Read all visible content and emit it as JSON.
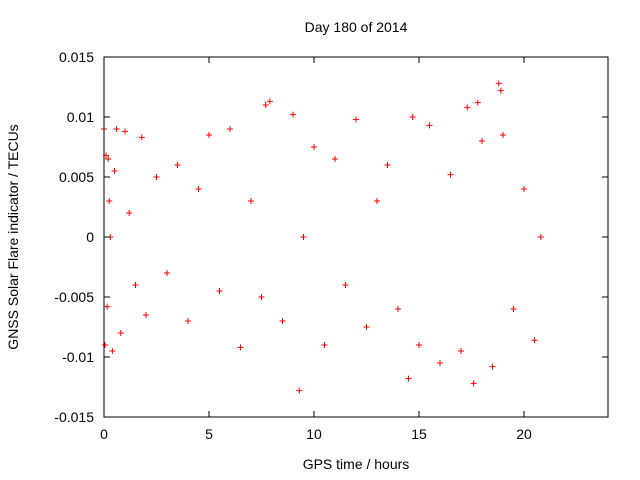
{
  "chart_data": {
    "type": "scatter",
    "title": "Day 180 of 2014",
    "xlabel": "GPS time / hours",
    "ylabel": "GNSS Solar Flare indicator / TECUs",
    "xlim": [
      0,
      24
    ],
    "ylim": [
      -0.015,
      0.015
    ],
    "xticks": [
      0,
      5,
      10,
      15,
      20
    ],
    "xtick_labels": [
      "0",
      "5",
      "10",
      "15",
      "20"
    ],
    "yticks": [
      -0.015,
      -0.01,
      -0.005,
      0,
      0.005,
      0.01,
      0.015
    ],
    "ytick_labels": [
      "-0.015",
      "-0.01",
      "-0.005",
      "0",
      "0.005",
      "0.01",
      "0.015"
    ],
    "grid": false,
    "legend": "none",
    "marker": "plus",
    "color": "#ff0000",
    "series": [
      {
        "x": [
          0.0,
          0.05,
          0.1,
          0.15,
          0.2,
          0.25,
          0.3,
          0.4,
          0.5,
          0.6,
          0.8,
          1.0,
          1.2,
          1.5,
          1.8,
          2.0,
          2.5,
          3.0,
          3.5,
          4.0,
          4.5,
          5.0,
          5.5,
          6.0,
          6.5,
          7.0,
          7.5,
          7.7,
          7.9,
          8.5,
          9.0,
          9.3,
          9.5,
          10.0,
          10.5,
          11.0,
          11.5,
          12.0,
          12.5,
          13.0,
          13.5,
          14.0,
          14.5,
          14.7,
          15.0,
          15.5,
          16.0,
          16.5,
          17.0,
          17.3,
          17.6,
          17.8,
          18.0,
          18.5,
          18.8,
          18.9,
          19.0,
          19.5,
          20.0,
          20.5,
          20.8
        ],
        "y": [
          0.009,
          -0.009,
          0.0068,
          -0.0058,
          0.0065,
          0.003,
          0.0,
          -0.0095,
          0.0055,
          0.009,
          -0.008,
          0.0088,
          0.002,
          -0.004,
          0.0083,
          -0.0065,
          0.005,
          -0.003,
          0.006,
          -0.007,
          0.004,
          0.0085,
          -0.0045,
          0.009,
          -0.0092,
          0.003,
          -0.005,
          0.011,
          0.0113,
          -0.007,
          0.0102,
          -0.0128,
          0.0,
          0.0075,
          -0.009,
          0.0065,
          -0.004,
          0.0098,
          -0.0075,
          0.003,
          0.006,
          -0.006,
          -0.0118,
          0.01,
          -0.009,
          0.0093,
          -0.0105,
          0.0052,
          -0.0095,
          0.0108,
          -0.0122,
          0.0112,
          0.008,
          -0.0108,
          0.0128,
          0.0122,
          0.0085,
          -0.006,
          0.004,
          -0.0086,
          0.0
        ]
      }
    ]
  }
}
